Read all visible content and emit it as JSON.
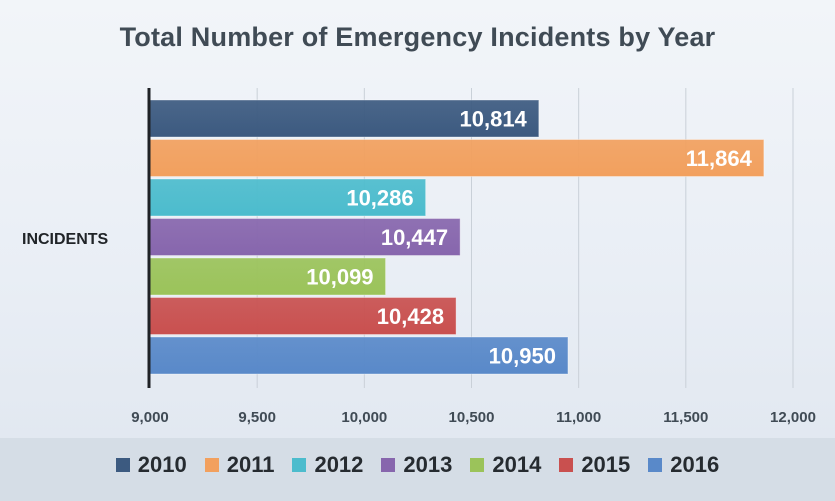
{
  "chart_data": {
    "type": "bar",
    "orientation": "horizontal",
    "title": "Total Number of Emergency Incidents by Year",
    "categories": [
      "INCIDENTS"
    ],
    "xlim": [
      9000,
      12000
    ],
    "x_ticks": [
      9000,
      9500,
      10000,
      10500,
      11000,
      11500,
      12000
    ],
    "x_tick_labels": [
      "9,000",
      "9,500",
      "10,000",
      "10,500",
      "11,000",
      "11,500",
      "12,000"
    ],
    "grid": true,
    "legend_position": "bottom",
    "series": [
      {
        "name": "2010",
        "value": 10814,
        "label": "10,814",
        "color": "#3c5a80"
      },
      {
        "name": "2011",
        "value": 11864,
        "label": "11,864",
        "color": "#f2a05e"
      },
      {
        "name": "2012",
        "value": 10286,
        "label": "10,286",
        "color": "#4cbccd"
      },
      {
        "name": "2013",
        "value": 10447,
        "label": "10,447",
        "color": "#8766ad"
      },
      {
        "name": "2014",
        "value": 10099,
        "label": "10,099",
        "color": "#9bc35a"
      },
      {
        "name": "2015",
        "value": 10428,
        "label": "10,428",
        "color": "#c9504f"
      },
      {
        "name": "2016",
        "value": 10950,
        "label": "10,950",
        "color": "#5989c9"
      }
    ]
  }
}
